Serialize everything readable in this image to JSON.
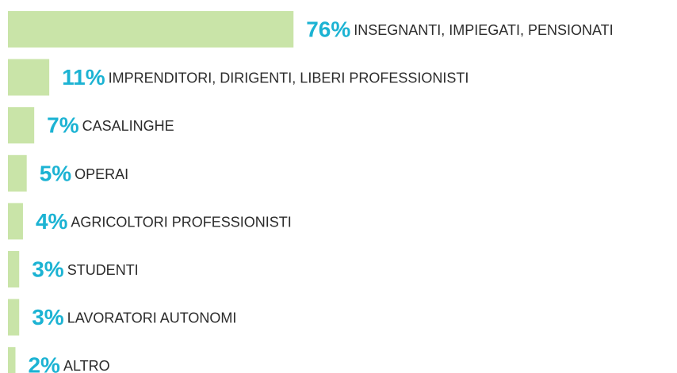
{
  "chart_data": {
    "type": "bar",
    "orientation": "horizontal",
    "categories": [
      "INSEGNANTI, IMPIEGATI, PENSIONATI",
      "IMPRENDITORI, DIRIGENTI, LIBERI PROFESSIONISTI",
      "CASALINGHE",
      "OPERAI",
      "AGRICOLTORI PROFESSIONISTI",
      "STUDENTI",
      "LAVORATORI AUTONOMI",
      "ALTRO"
    ],
    "values": [
      76,
      11,
      7,
      5,
      4,
      3,
      3,
      2
    ],
    "value_labels": [
      "76%",
      "11%",
      "7%",
      "5%",
      "4%",
      "3%",
      "3%",
      "2%"
    ],
    "color": "#c9e4a8",
    "label_color": "#1cb3d3"
  }
}
